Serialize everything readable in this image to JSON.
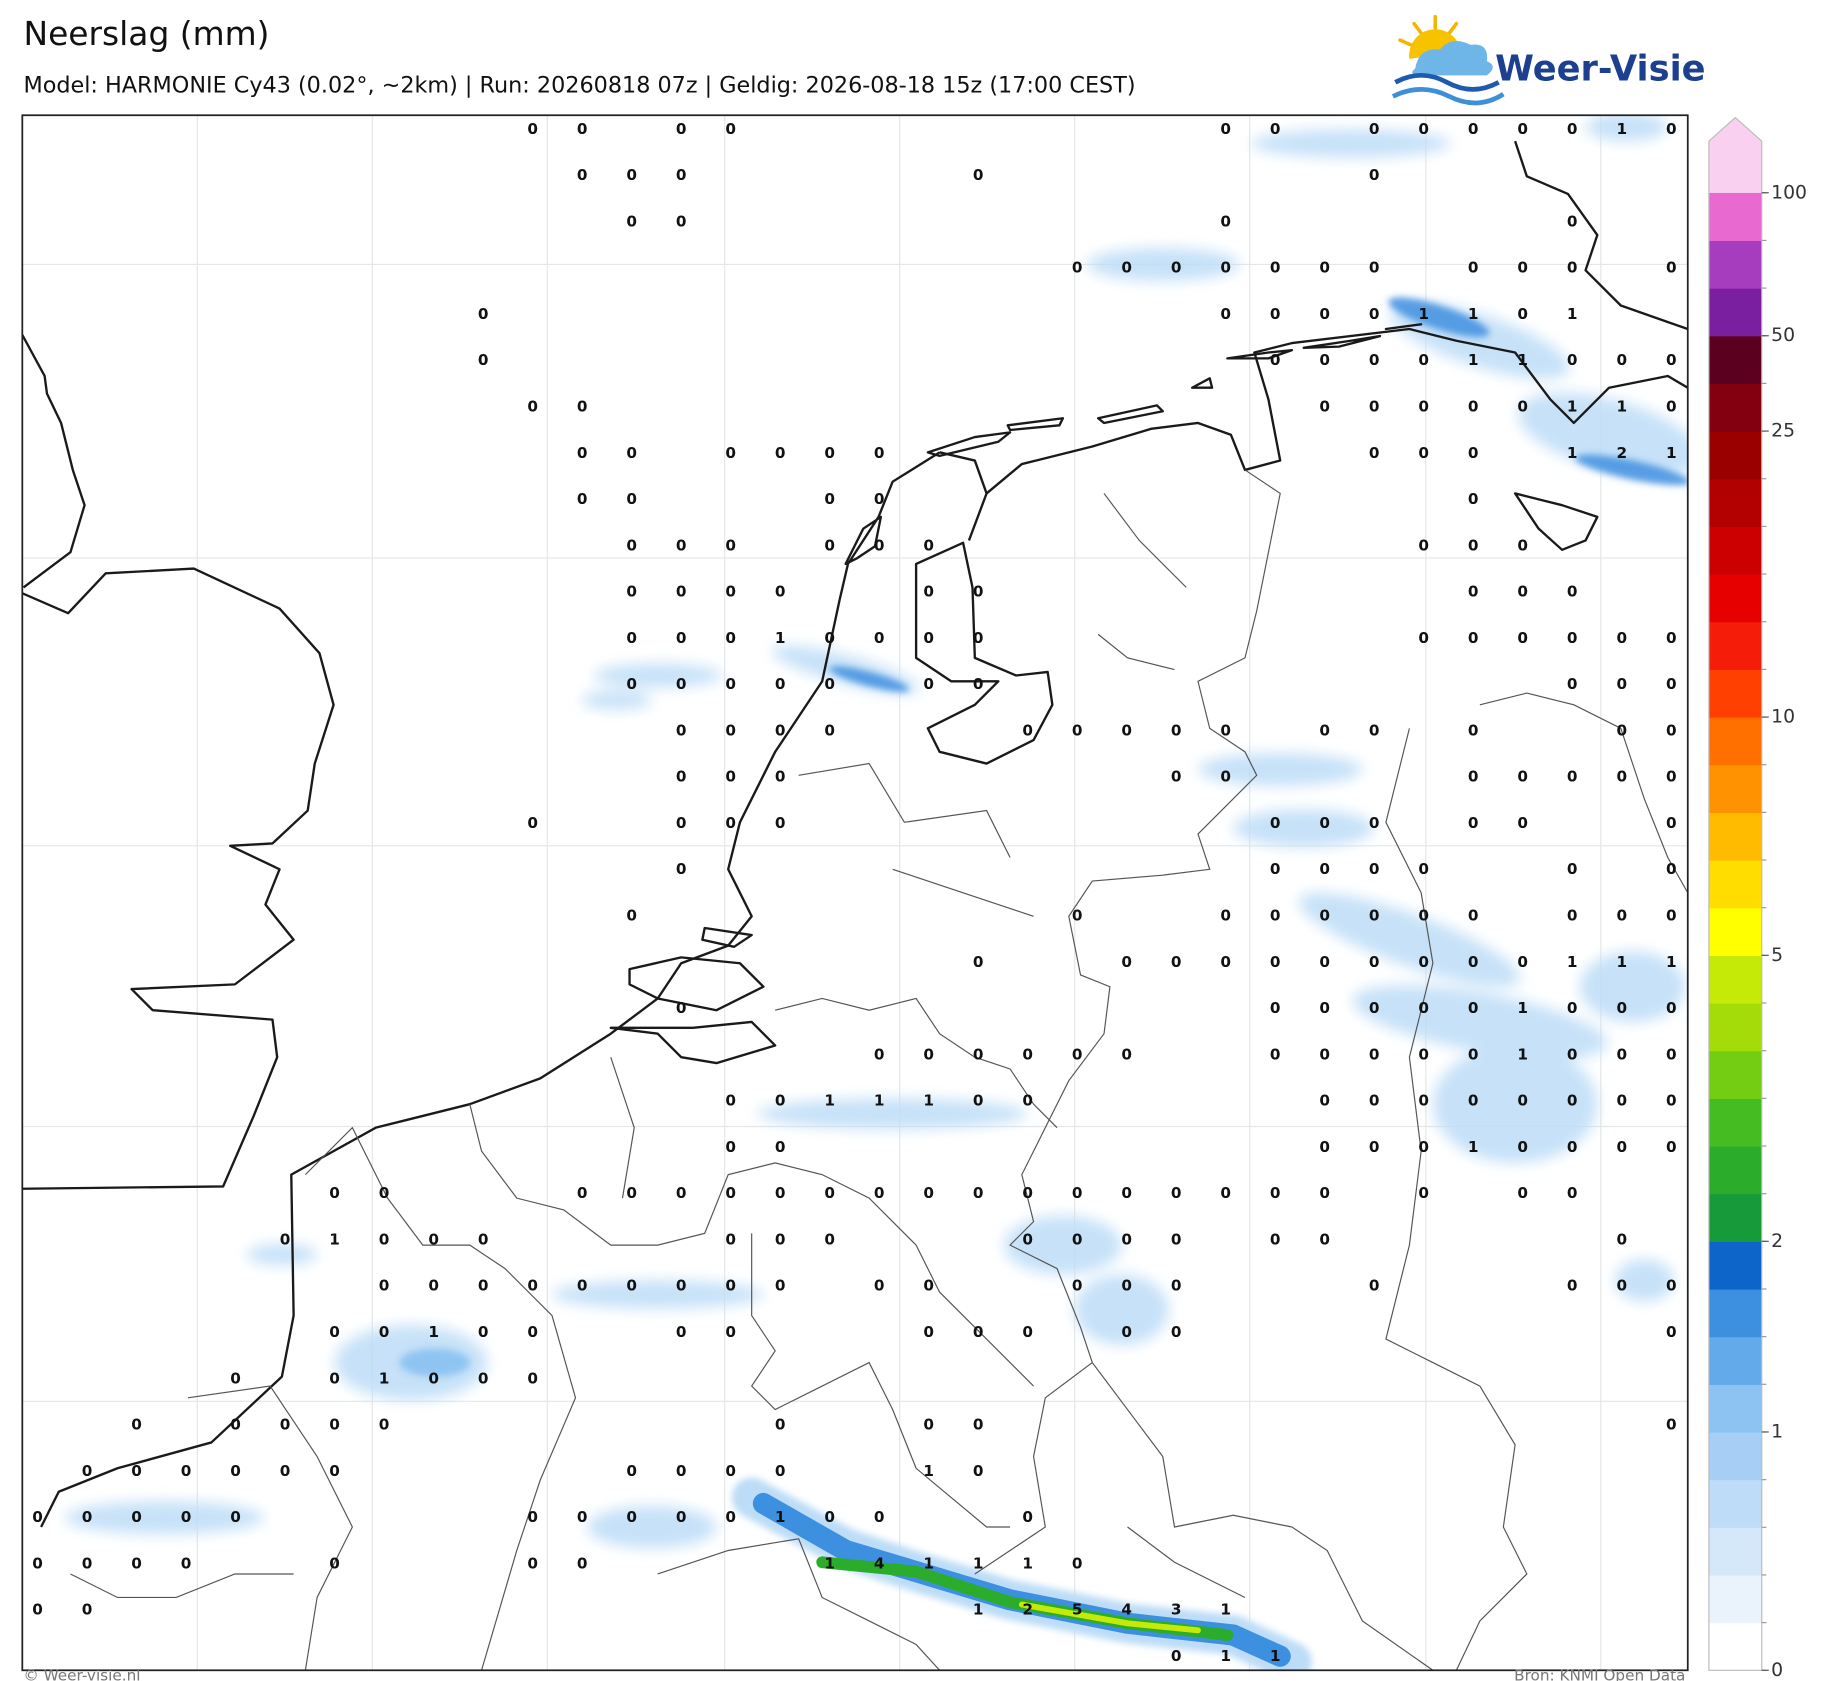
{
  "header": {
    "title": "Neerslag (mm)",
    "subtitle": "Model: HARMONIE Cy43 (0.02°, ~2km)  |  Run: 20260818 07z  |  Geldig: 2026-08-18 15z (17:00 CEST)"
  },
  "logo": {
    "text": "Weer-Visie"
  },
  "grid_values": [
    [
      null,
      null,
      null,
      null,
      null,
      null,
      null,
      null,
      null,
      null,
      0,
      0,
      null,
      0,
      0,
      null,
      null,
      null,
      null,
      null,
      null,
      null,
      null,
      null,
      0,
      0,
      null,
      0,
      0,
      0,
      0,
      0,
      1,
      0
    ],
    [
      null,
      null,
      null,
      null,
      null,
      null,
      null,
      null,
      null,
      null,
      null,
      0,
      0,
      0,
      null,
      null,
      null,
      null,
      null,
      0,
      null,
      null,
      null,
      null,
      null,
      null,
      null,
      0,
      null,
      null,
      null,
      null,
      null,
      null
    ],
    [
      null,
      null,
      null,
      null,
      null,
      null,
      null,
      null,
      null,
      null,
      null,
      null,
      0,
      0,
      null,
      null,
      null,
      null,
      null,
      null,
      null,
      null,
      null,
      null,
      0,
      null,
      null,
      null,
      null,
      null,
      null,
      0,
      null,
      null
    ],
    [
      null,
      null,
      null,
      null,
      null,
      null,
      null,
      null,
      null,
      null,
      null,
      null,
      null,
      null,
      null,
      null,
      null,
      null,
      null,
      null,
      null,
      0,
      0,
      0,
      0,
      0,
      0,
      0,
      null,
      0,
      0,
      0,
      null,
      0
    ],
    [
      null,
      null,
      null,
      null,
      null,
      null,
      null,
      null,
      null,
      0,
      null,
      null,
      null,
      null,
      null,
      null,
      null,
      null,
      null,
      null,
      null,
      null,
      null,
      null,
      0,
      0,
      0,
      0,
      1,
      1,
      0,
      1,
      null,
      null
    ],
    [
      null,
      null,
      null,
      null,
      null,
      null,
      null,
      null,
      null,
      0,
      null,
      null,
      null,
      null,
      null,
      null,
      null,
      null,
      null,
      null,
      null,
      null,
      null,
      null,
      null,
      0,
      0,
      0,
      0,
      1,
      1,
      0,
      0,
      0
    ],
    [
      null,
      null,
      null,
      null,
      null,
      null,
      null,
      null,
      null,
      null,
      0,
      0,
      null,
      null,
      null,
      null,
      null,
      null,
      null,
      null,
      null,
      null,
      null,
      null,
      null,
      null,
      0,
      0,
      0,
      0,
      0,
      1,
      1,
      0
    ],
    [
      null,
      null,
      null,
      null,
      null,
      null,
      null,
      null,
      null,
      null,
      null,
      0,
      0,
      null,
      0,
      0,
      0,
      0,
      null,
      null,
      null,
      null,
      null,
      null,
      null,
      null,
      null,
      0,
      0,
      0,
      null,
      1,
      2,
      1
    ],
    [
      null,
      null,
      null,
      null,
      null,
      null,
      null,
      null,
      null,
      null,
      null,
      0,
      0,
      null,
      null,
      null,
      0,
      0,
      null,
      null,
      null,
      null,
      null,
      null,
      null,
      null,
      null,
      null,
      null,
      0,
      null,
      null,
      null,
      null
    ],
    [
      null,
      null,
      null,
      null,
      null,
      null,
      null,
      null,
      null,
      null,
      null,
      null,
      0,
      0,
      0,
      null,
      0,
      0,
      0,
      null,
      null,
      null,
      null,
      null,
      null,
      null,
      null,
      null,
      0,
      0,
      0,
      null,
      null,
      null
    ],
    [
      null,
      null,
      null,
      null,
      null,
      null,
      null,
      null,
      null,
      null,
      null,
      null,
      0,
      0,
      0,
      0,
      null,
      null,
      0,
      0,
      null,
      null,
      null,
      null,
      null,
      null,
      null,
      null,
      null,
      0,
      0,
      0,
      null,
      null
    ],
    [
      null,
      null,
      null,
      null,
      null,
      null,
      null,
      null,
      null,
      null,
      null,
      null,
      0,
      0,
      0,
      1,
      0,
      0,
      0,
      0,
      null,
      null,
      null,
      null,
      null,
      null,
      null,
      null,
      0,
      0,
      0,
      0,
      0,
      0
    ],
    [
      null,
      null,
      null,
      null,
      null,
      null,
      null,
      null,
      null,
      null,
      null,
      null,
      0,
      0,
      0,
      0,
      0,
      null,
      0,
      0,
      null,
      null,
      null,
      null,
      null,
      null,
      null,
      null,
      null,
      null,
      null,
      0,
      0,
      0
    ],
    [
      null,
      null,
      null,
      null,
      null,
      null,
      null,
      null,
      null,
      null,
      null,
      null,
      null,
      0,
      0,
      0,
      0,
      null,
      null,
      null,
      0,
      0,
      0,
      0,
      0,
      null,
      0,
      0,
      null,
      0,
      null,
      null,
      0,
      0
    ],
    [
      null,
      null,
      null,
      null,
      null,
      null,
      null,
      null,
      null,
      null,
      null,
      null,
      null,
      0,
      0,
      0,
      null,
      null,
      null,
      null,
      null,
      null,
      null,
      0,
      0,
      null,
      null,
      null,
      null,
      0,
      0,
      0,
      0,
      0
    ],
    [
      null,
      null,
      null,
      null,
      null,
      null,
      null,
      null,
      null,
      null,
      0,
      null,
      null,
      0,
      0,
      0,
      null,
      null,
      null,
      null,
      null,
      null,
      null,
      null,
      null,
      0,
      0,
      0,
      null,
      0,
      0,
      null,
      null,
      0
    ],
    [
      null,
      null,
      null,
      null,
      null,
      null,
      null,
      null,
      null,
      null,
      null,
      null,
      null,
      0,
      null,
      null,
      null,
      null,
      null,
      null,
      null,
      null,
      null,
      null,
      null,
      0,
      0,
      0,
      0,
      null,
      null,
      0,
      null,
      0
    ],
    [
      null,
      null,
      null,
      null,
      null,
      null,
      null,
      null,
      null,
      null,
      null,
      null,
      0,
      null,
      null,
      null,
      null,
      null,
      null,
      null,
      null,
      0,
      null,
      null,
      0,
      0,
      0,
      0,
      0,
      0,
      null,
      0,
      0,
      0
    ],
    [
      null,
      null,
      null,
      null,
      null,
      null,
      null,
      null,
      null,
      null,
      null,
      null,
      null,
      null,
      null,
      null,
      null,
      null,
      null,
      0,
      null,
      null,
      0,
      0,
      0,
      0,
      0,
      0,
      0,
      0,
      0,
      1,
      1,
      1
    ],
    [
      null,
      null,
      null,
      null,
      null,
      null,
      null,
      null,
      null,
      null,
      null,
      null,
      null,
      0,
      null,
      null,
      null,
      null,
      null,
      null,
      null,
      null,
      null,
      null,
      null,
      0,
      0,
      0,
      0,
      0,
      1,
      0,
      0,
      0
    ],
    [
      null,
      null,
      null,
      null,
      null,
      null,
      null,
      null,
      null,
      null,
      null,
      null,
      null,
      null,
      null,
      null,
      null,
      0,
      0,
      0,
      0,
      0,
      0,
      null,
      null,
      0,
      0,
      0,
      0,
      0,
      1,
      0,
      0,
      0
    ],
    [
      null,
      null,
      null,
      null,
      null,
      null,
      null,
      null,
      null,
      null,
      null,
      null,
      null,
      null,
      0,
      0,
      1,
      1,
      1,
      0,
      0,
      null,
      null,
      null,
      null,
      null,
      0,
      0,
      0,
      0,
      0,
      0,
      0,
      0
    ],
    [
      null,
      null,
      null,
      null,
      null,
      null,
      null,
      null,
      null,
      null,
      null,
      null,
      null,
      null,
      0,
      0,
      null,
      null,
      null,
      null,
      null,
      null,
      null,
      null,
      null,
      null,
      0,
      0,
      0,
      1,
      0,
      0,
      0,
      0
    ],
    [
      null,
      null,
      null,
      null,
      null,
      null,
      0,
      0,
      null,
      null,
      null,
      0,
      0,
      0,
      0,
      0,
      0,
      0,
      0,
      0,
      0,
      0,
      0,
      0,
      0,
      0,
      0,
      null,
      0,
      null,
      0,
      0,
      null,
      null
    ],
    [
      null,
      null,
      null,
      null,
      null,
      0,
      1,
      0,
      0,
      0,
      null,
      null,
      null,
      null,
      0,
      0,
      0,
      null,
      null,
      null,
      0,
      0,
      0,
      0,
      null,
      0,
      0,
      null,
      null,
      null,
      null,
      null,
      0,
      null
    ],
    [
      null,
      null,
      null,
      null,
      null,
      null,
      null,
      0,
      0,
      0,
      0,
      0,
      0,
      0,
      0,
      0,
      null,
      0,
      0,
      null,
      null,
      0,
      0,
      0,
      null,
      null,
      null,
      0,
      null,
      null,
      null,
      0,
      0,
      0
    ],
    [
      null,
      null,
      null,
      null,
      null,
      null,
      0,
      0,
      1,
      0,
      0,
      null,
      null,
      0,
      0,
      null,
      null,
      null,
      0,
      0,
      0,
      null,
      0,
      0,
      null,
      null,
      null,
      null,
      null,
      null,
      null,
      null,
      null,
      0
    ],
    [
      null,
      null,
      null,
      null,
      0,
      null,
      0,
      1,
      0,
      0,
      0,
      null,
      null,
      null,
      null,
      null,
      null,
      null,
      null,
      null,
      null,
      null,
      null,
      null,
      null,
      null,
      null,
      null,
      null,
      null,
      null,
      null,
      null,
      null
    ],
    [
      null,
      null,
      0,
      null,
      0,
      0,
      0,
      0,
      null,
      null,
      null,
      null,
      null,
      null,
      null,
      0,
      null,
      null,
      0,
      0,
      null,
      null,
      null,
      null,
      null,
      null,
      null,
      null,
      null,
      null,
      null,
      null,
      null,
      0
    ],
    [
      null,
      0,
      0,
      0,
      0,
      0,
      0,
      null,
      null,
      null,
      null,
      null,
      0,
      0,
      0,
      0,
      null,
      null,
      1,
      0,
      null,
      null,
      null,
      null,
      null,
      null,
      null,
      null,
      null,
      null,
      null,
      null,
      null,
      null
    ],
    [
      0,
      0,
      0,
      0,
      0,
      null,
      null,
      null,
      null,
      null,
      0,
      0,
      0,
      0,
      0,
      1,
      0,
      0,
      null,
      null,
      0,
      null,
      null,
      null,
      null,
      null,
      null,
      null,
      null,
      null,
      null,
      null,
      null,
      null
    ],
    [
      0,
      0,
      0,
      0,
      null,
      null,
      0,
      null,
      null,
      null,
      0,
      0,
      null,
      null,
      null,
      null,
      1,
      4,
      1,
      1,
      1,
      0,
      null,
      null,
      null,
      null,
      null,
      null,
      null,
      null,
      null,
      null,
      null,
      null
    ],
    [
      0,
      0,
      null,
      null,
      null,
      null,
      null,
      null,
      null,
      null,
      null,
      null,
      null,
      null,
      null,
      null,
      null,
      null,
      null,
      1,
      2,
      5,
      4,
      3,
      1,
      null,
      null,
      null,
      null,
      null,
      null,
      null,
      null,
      null
    ],
    [
      null,
      null,
      null,
      null,
      null,
      null,
      null,
      null,
      null,
      null,
      null,
      null,
      null,
      null,
      null,
      null,
      null,
      null,
      null,
      null,
      null,
      null,
      null,
      0,
      1,
      1,
      null,
      null,
      null,
      null,
      null,
      null,
      null,
      null
    ]
  ],
  "colorbar": {
    "levels": [
      0,
      0.2,
      0.4,
      0.6,
      0.8,
      1,
      1.25,
      1.5,
      1.75,
      2,
      2.5,
      3,
      3.5,
      4,
      4.5,
      5,
      6,
      7,
      8,
      9,
      10,
      12.5,
      15,
      17.5,
      20,
      22.5,
      25,
      37.5,
      50,
      65,
      80,
      100
    ],
    "colors": [
      "#ffffff",
      "#eaf3fc",
      "#d4e8fa",
      "#bedcf7",
      "#a7cff5",
      "#8cc3f2",
      "#63aaea",
      "#3d8fe0",
      "#0d64c9",
      "#169a3a",
      "#2bad2b",
      "#45bd22",
      "#74cd13",
      "#a4dc0a",
      "#c6ea08",
      "#ffff00",
      "#ffdd00",
      "#ffbb00",
      "#ff9200",
      "#ff7000",
      "#ff4000",
      "#f51c0a",
      "#e60000",
      "#cc0000",
      "#b30000",
      "#9a0000",
      "#820010",
      "#5c0020",
      "#7a1fa0",
      "#a63dbe",
      "#e86ad0"
    ],
    "extend_color": "#f9d0f0",
    "ticks": [
      0,
      1,
      2,
      5,
      10,
      25,
      50,
      100
    ]
  },
  "footer": {
    "credit": "© Weer-visie.nl",
    "source": "Bron: KNMI Open Data"
  }
}
